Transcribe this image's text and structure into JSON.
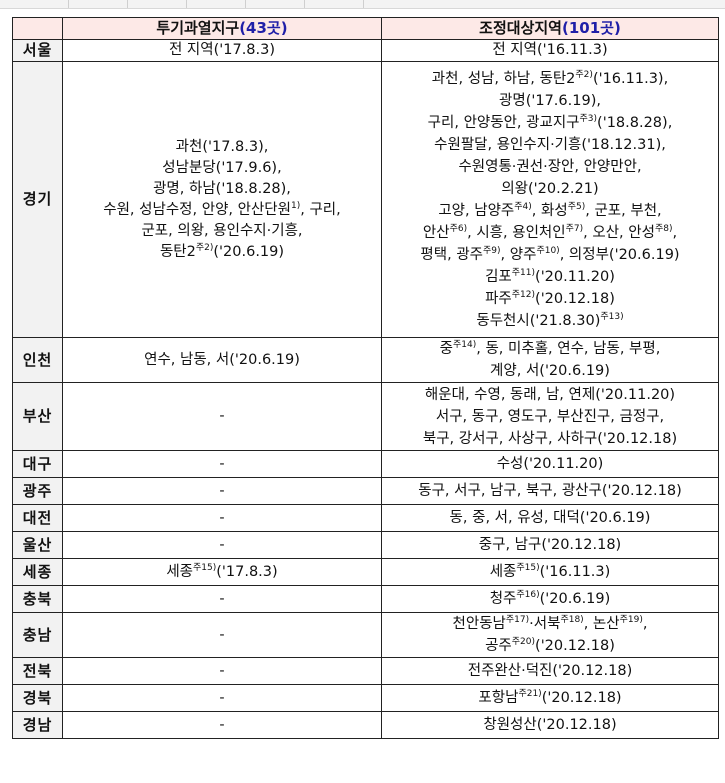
{
  "header": {
    "col_region": "",
    "col_speculative": {
      "label": "투기과열지구",
      "count": "(43곳)"
    },
    "col_adjustment": {
      "label": "조정대상지역",
      "count": "(101곳)"
    }
  },
  "colors": {
    "header_bg": "#fde9e7",
    "count_text": "#1f1fa8",
    "region_bg": "#f2f2f2"
  },
  "rows": [
    {
      "region": "서울",
      "h": 22,
      "speculative": [
        [
          {
            "t": "전 지역('17.8.3)"
          }
        ]
      ],
      "adjustment": [
        [
          {
            "t": "전 지역('16.11.3)"
          }
        ]
      ]
    },
    {
      "region": "경기",
      "h": 276,
      "speculative": [
        [
          {
            "t": "과천('17.8.3),"
          }
        ],
        [
          {
            "t": "성남분당('17.9.6),"
          }
        ],
        [
          {
            "t": "광명, 하남('18.8.28),"
          }
        ],
        [
          {
            "t": "수원, 성남수정, 안양, 안산단원"
          },
          {
            "sup": "1)"
          },
          {
            "t": ", 구리,"
          }
        ],
        [
          {
            "t": "군포, 의왕, 용인수지·기흥,"
          }
        ],
        [
          {
            "t": "동탄2"
          },
          {
            "sup": "주2)"
          },
          {
            "t": "('20.6.19)"
          }
        ]
      ],
      "adjustment": [
        [
          {
            "t": "과천, 성남, 하남, 동탄2"
          },
          {
            "sup": "주2)"
          },
          {
            "t": "('16.11.3),"
          }
        ],
        [
          {
            "t": "광명('17.6.19),"
          }
        ],
        [
          {
            "t": "구리, 안양동안, 광교지구"
          },
          {
            "sup": "주3)"
          },
          {
            "t": "('18.8.28),"
          }
        ],
        [
          {
            "t": "수원팔달, 용인수지·기흥('18.12.31),"
          }
        ],
        [
          {
            "t": "수원영통·권선·장안, 안양만안,"
          }
        ],
        [
          {
            "t": "의왕('20.2.21)"
          }
        ],
        [
          {
            "t": "고양, 남양주"
          },
          {
            "sup": "주4)"
          },
          {
            "t": ", 화성"
          },
          {
            "sup": "주5)"
          },
          {
            "t": ", 군포, 부천,"
          }
        ],
        [
          {
            "t": "안산"
          },
          {
            "sup": "주6)"
          },
          {
            "t": ", 시흥, 용인처인"
          },
          {
            "sup": "주7)"
          },
          {
            "t": ", 오산, 안성"
          },
          {
            "sup": "주8)"
          },
          {
            "t": ","
          }
        ],
        [
          {
            "t": "평택, 광주"
          },
          {
            "sup": "주9)"
          },
          {
            "t": ", 양주"
          },
          {
            "sup": "주10)"
          },
          {
            "t": ", 의정부('20.6.19)"
          }
        ],
        [
          {
            "t": "김포"
          },
          {
            "sup": "주11)"
          },
          {
            "t": "('20.11.20)"
          }
        ],
        [
          {
            "t": "파주"
          },
          {
            "sup": "주12)"
          },
          {
            "t": "('20.12.18)"
          }
        ],
        [
          {
            "t": "동두천시('21.8.30)"
          },
          {
            "sup": "주13)"
          }
        ]
      ]
    },
    {
      "region": "인천",
      "h": 43,
      "speculative": [
        [
          {
            "t": "연수, 남동, 서('20.6.19)"
          }
        ]
      ],
      "adjustment": [
        [
          {
            "t": "중"
          },
          {
            "sup": "주14)"
          },
          {
            "t": ", 동, 미추홀, 연수, 남동, 부평,"
          }
        ],
        [
          {
            "t": "계양, 서('20.6.19)"
          }
        ]
      ]
    },
    {
      "region": "부산",
      "h": 68,
      "speculative": [
        [
          {
            "t": "-"
          }
        ]
      ],
      "adjustment": [
        [
          {
            "t": "해운대, 수영, 동래, 남, 연제('20.11.20)"
          }
        ],
        [
          {
            "t": "서구, 동구, 영도구, 부산진구, 금정구,"
          }
        ],
        [
          {
            "t": "북구, 강서구, 사상구, 사하구('20.12.18)"
          }
        ]
      ]
    },
    {
      "region": "대구",
      "h": 27,
      "speculative": [
        [
          {
            "t": "-"
          }
        ]
      ],
      "adjustment": [
        [
          {
            "t": "수성('20.11.20)"
          }
        ]
      ]
    },
    {
      "region": "광주",
      "h": 27,
      "speculative": [
        [
          {
            "t": "-"
          }
        ]
      ],
      "adjustment": [
        [
          {
            "t": "동구, 서구, 남구, 북구, 광산구('20.12.18)"
          }
        ]
      ]
    },
    {
      "region": "대전",
      "h": 27,
      "speculative": [
        [
          {
            "t": "-"
          }
        ]
      ],
      "adjustment": [
        [
          {
            "t": "동, 중, 서, 유성, 대덕('20.6.19)"
          }
        ]
      ]
    },
    {
      "region": "울산",
      "h": 27,
      "speculative": [
        [
          {
            "t": "-"
          }
        ]
      ],
      "adjustment": [
        [
          {
            "t": "중구, 남구('20.12.18)"
          }
        ]
      ]
    },
    {
      "region": "세종",
      "h": 27,
      "speculative": [
        [
          {
            "t": "세종"
          },
          {
            "sup": "주15)"
          },
          {
            "t": "('17.8.3)"
          }
        ]
      ],
      "adjustment": [
        [
          {
            "t": "세종"
          },
          {
            "sup": "주15)"
          },
          {
            "t": "('16.11.3)"
          }
        ]
      ]
    },
    {
      "region": "충북",
      "h": 27,
      "speculative": [
        [
          {
            "t": "-"
          }
        ]
      ],
      "adjustment": [
        [
          {
            "t": "청주"
          },
          {
            "sup": "주16)"
          },
          {
            "t": "('20.6.19)"
          }
        ]
      ]
    },
    {
      "region": "충남",
      "h": 45,
      "speculative": [
        [
          {
            "t": "-"
          }
        ]
      ],
      "adjustment": [
        [
          {
            "t": "천안동남"
          },
          {
            "sup": "주17)"
          },
          {
            "t": "·서북"
          },
          {
            "sup": "주18)"
          },
          {
            "t": ", 논산"
          },
          {
            "sup": "주19)"
          },
          {
            "t": ","
          }
        ],
        [
          {
            "t": "공주"
          },
          {
            "sup": "주20)"
          },
          {
            "t": "('20.12.18)"
          }
        ]
      ]
    },
    {
      "region": "전북",
      "h": 27,
      "speculative": [
        [
          {
            "t": "-"
          }
        ]
      ],
      "adjustment": [
        [
          {
            "t": "전주완산·덕진('20.12.18)"
          }
        ]
      ]
    },
    {
      "region": "경북",
      "h": 27,
      "speculative": [
        [
          {
            "t": "-"
          }
        ]
      ],
      "adjustment": [
        [
          {
            "t": "포항남"
          },
          {
            "sup": "주21)"
          },
          {
            "t": "('20.12.18)"
          }
        ]
      ]
    },
    {
      "region": "경남",
      "h": 27,
      "speculative": [
        [
          {
            "t": "-"
          }
        ]
      ],
      "adjustment": [
        [
          {
            "t": "창원성산('20.12.18)"
          }
        ]
      ]
    }
  ]
}
